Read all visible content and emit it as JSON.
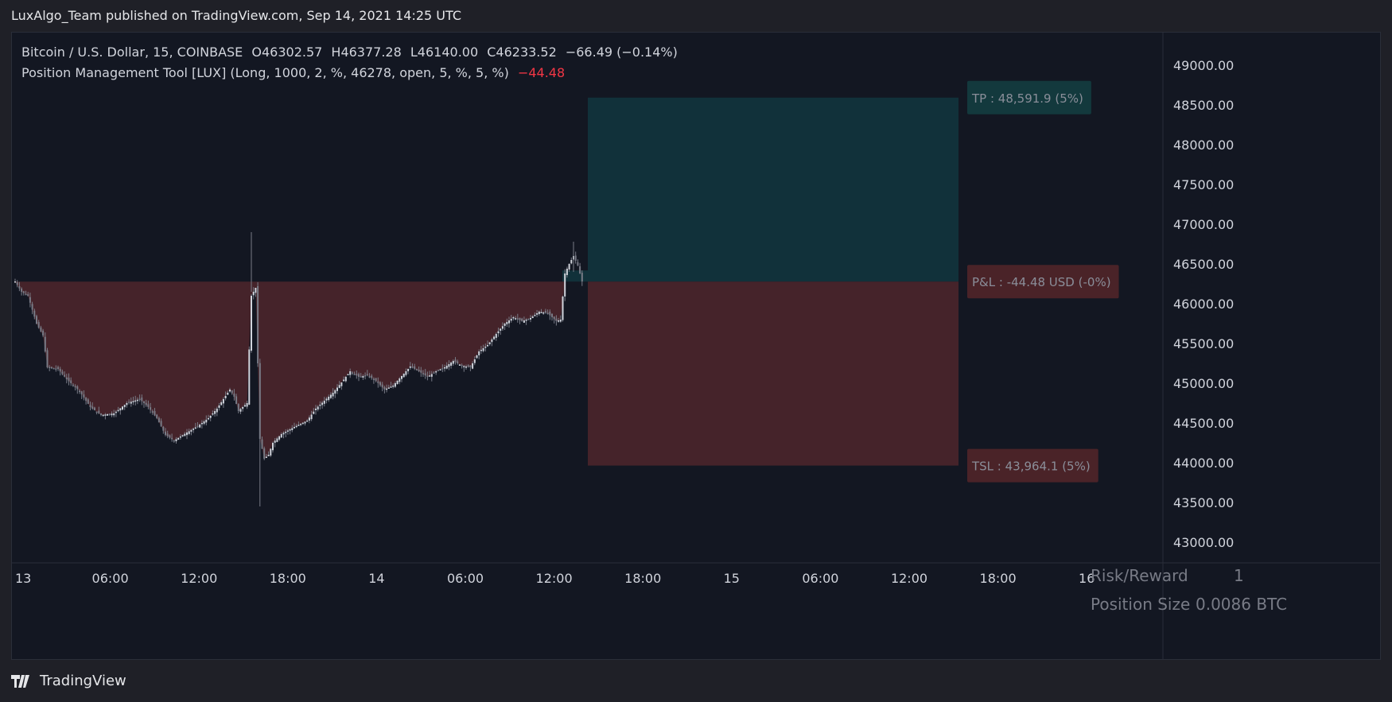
{
  "caption": "LuxAlgo_Team published on TradingView.com, Sep 14, 2021 14:25 UTC",
  "legend": {
    "symbol": "Bitcoin / U.S. Dollar, 15, COINBASE",
    "open": "O46302.57",
    "high": "H46377.28",
    "low": "L46140.00",
    "close": "C46233.52",
    "change": "−66.49 (−0.14%)",
    "indicator": "Position Management Tool [LUX] (Long, 1000, 2, %, 46278, open, 5, %, 5, %)",
    "indicator_value": "−44.48"
  },
  "labels": {
    "tp": "TP : 48,591.9 (5%)",
    "pnl": "P&L : -44.48 USD (-0%)",
    "tsl": "TSL : 43,964.1 (5%)"
  },
  "stats": {
    "risk_reward_label": "Risk/Reward",
    "risk_reward_value": "1",
    "position_size_label": "Position Size",
    "position_size_value": "0.0086 BTC"
  },
  "footer": {
    "brand": "TradingView"
  },
  "colors": {
    "background": "#131722",
    "profit_zone": "#11313a",
    "loss_zone": "#45232a",
    "candle_up": "#d1d4dc",
    "candle_down": "#787b86",
    "negative": "#f23645"
  },
  "chart_data": {
    "type": "candlestick",
    "symbol": "BTCUSD",
    "interval": "15",
    "entry_price": 46278,
    "take_profit": 48591.9,
    "trailing_stop": 43964.1,
    "ylim": [
      42800,
      49500
    ],
    "y_ticks": [
      "49000.00",
      "48500.00",
      "48000.00",
      "47500.00",
      "47000.00",
      "46500.00",
      "46000.00",
      "45500.00",
      "45000.00",
      "44500.00",
      "44000.00",
      "43500.00",
      "43000.00"
    ],
    "x_ticks": [
      "13",
      "06:00",
      "12:00",
      "18:00",
      "14",
      "06:00",
      "12:00",
      "18:00",
      "15",
      "06:00",
      "12:00",
      "18:00",
      "16"
    ],
    "close_path": [
      [
        0,
        46280
      ],
      [
        3,
        46150
      ],
      [
        6,
        46100
      ],
      [
        10,
        45750
      ],
      [
        13,
        45600
      ],
      [
        15,
        45200
      ],
      [
        20,
        45180
      ],
      [
        24,
        45050
      ],
      [
        30,
        44900
      ],
      [
        35,
        44700
      ],
      [
        40,
        44600
      ],
      [
        46,
        44620
      ],
      [
        52,
        44750
      ],
      [
        58,
        44800
      ],
      [
        62,
        44700
      ],
      [
        66,
        44560
      ],
      [
        70,
        44350
      ],
      [
        74,
        44280
      ],
      [
        80,
        44380
      ],
      [
        85,
        44460
      ],
      [
        90,
        44560
      ],
      [
        94,
        44680
      ],
      [
        97,
        44800
      ],
      [
        100,
        44920
      ],
      [
        102,
        44830
      ],
      [
        104,
        44650
      ],
      [
        106,
        44700
      ],
      [
        108,
        44750
      ],
      [
        110,
        46100
      ],
      [
        112,
        46200
      ],
      [
        114,
        44300
      ],
      [
        116,
        44050
      ],
      [
        118,
        44100
      ],
      [
        120,
        44250
      ],
      [
        124,
        44360
      ],
      [
        130,
        44450
      ],
      [
        136,
        44530
      ],
      [
        140,
        44680
      ],
      [
        144,
        44780
      ],
      [
        148,
        44880
      ],
      [
        152,
        45010
      ],
      [
        156,
        45150
      ],
      [
        160,
        45080
      ],
      [
        164,
        45100
      ],
      [
        168,
        45030
      ],
      [
        172,
        44920
      ],
      [
        176,
        44970
      ],
      [
        180,
        45090
      ],
      [
        184,
        45210
      ],
      [
        188,
        45150
      ],
      [
        192,
        45080
      ],
      [
        196,
        45150
      ],
      [
        200,
        45200
      ],
      [
        204,
        45280
      ],
      [
        208,
        45220
      ],
      [
        212,
        45200
      ],
      [
        216,
        45400
      ],
      [
        220,
        45480
      ],
      [
        224,
        45620
      ],
      [
        228,
        45750
      ],
      [
        232,
        45830
      ],
      [
        236,
        45780
      ],
      [
        240,
        45820
      ],
      [
        244,
        45900
      ],
      [
        248,
        45880
      ],
      [
        252,
        45780
      ],
      [
        254,
        45800
      ],
      [
        256,
        46380
      ],
      [
        258,
        46500
      ],
      [
        260,
        46600
      ],
      [
        262,
        46480
      ],
      [
        264,
        46280
      ]
    ]
  }
}
